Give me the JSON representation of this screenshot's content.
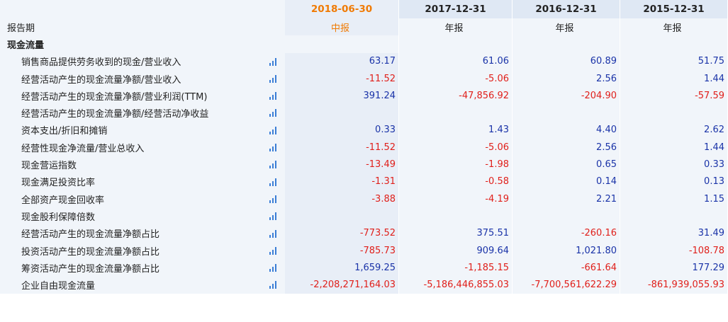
{
  "header": {
    "dates": [
      "2018-06-30",
      "2017-12-31",
      "2016-12-31",
      "2015-12-31"
    ]
  },
  "report_period": {
    "label": "报告期",
    "types": [
      "中报",
      "年报",
      "年报",
      "年报"
    ]
  },
  "section_title": "现金流量",
  "rows": [
    {
      "label": "销售商品提供劳务收到的现金/营业收入",
      "values": [
        "63.17",
        "61.06",
        "60.89",
        "51.75"
      ],
      "signs": [
        "pos",
        "pos",
        "pos",
        "pos"
      ]
    },
    {
      "label": "经营活动产生的现金流量净额/营业收入",
      "values": [
        "-11.52",
        "-5.06",
        "2.56",
        "1.44"
      ],
      "signs": [
        "neg",
        "neg",
        "pos",
        "pos"
      ]
    },
    {
      "label": "经营活动产生的现金流量净额/营业利润(TTM)",
      "values": [
        "391.24",
        "-47,856.92",
        "-204.90",
        "-57.59"
      ],
      "signs": [
        "pos",
        "neg",
        "neg",
        "neg"
      ]
    },
    {
      "label": "经营活动产生的现金流量净额/经营活动净收益",
      "values": [
        "",
        "",
        "",
        ""
      ],
      "signs": [
        "pos",
        "pos",
        "pos",
        "pos"
      ]
    },
    {
      "label": "资本支出/折旧和摊销",
      "values": [
        "0.33",
        "1.43",
        "4.40",
        "2.62"
      ],
      "signs": [
        "pos",
        "pos",
        "pos",
        "pos"
      ]
    },
    {
      "label": "经营性现金净流量/营业总收入",
      "values": [
        "-11.52",
        "-5.06",
        "2.56",
        "1.44"
      ],
      "signs": [
        "neg",
        "neg",
        "pos",
        "pos"
      ]
    },
    {
      "label": "现金营运指数",
      "values": [
        "-13.49",
        "-1.98",
        "0.65",
        "0.33"
      ],
      "signs": [
        "neg",
        "neg",
        "pos",
        "pos"
      ]
    },
    {
      "label": "现金满足投资比率",
      "values": [
        "-1.31",
        "-0.58",
        "0.14",
        "0.13"
      ],
      "signs": [
        "neg",
        "neg",
        "pos",
        "pos"
      ]
    },
    {
      "label": "全部资产现金回收率",
      "values": [
        "-3.88",
        "-4.19",
        "2.21",
        "1.15"
      ],
      "signs": [
        "neg",
        "neg",
        "pos",
        "pos"
      ]
    },
    {
      "label": "现金股利保障倍数",
      "values": [
        "",
        "",
        "",
        ""
      ],
      "signs": [
        "pos",
        "pos",
        "pos",
        "pos"
      ]
    },
    {
      "label": "经营活动产生的现金流量净额占比",
      "values": [
        "-773.52",
        "375.51",
        "-260.16",
        "31.49"
      ],
      "signs": [
        "neg",
        "pos",
        "neg",
        "pos"
      ]
    },
    {
      "label": "投资活动产生的现金流量净额占比",
      "values": [
        "-785.73",
        "909.64",
        "1,021.80",
        "-108.78"
      ],
      "signs": [
        "neg",
        "pos",
        "pos",
        "neg"
      ]
    },
    {
      "label": "筹资活动产生的现金流量净额占比",
      "values": [
        "1,659.25",
        "-1,185.15",
        "-661.64",
        "177.29"
      ],
      "signs": [
        "pos",
        "neg",
        "neg",
        "pos"
      ]
    },
    {
      "label": "企业自由现金流量",
      "values": [
        "-2,208,271,164.03",
        "-5,186,446,855.03",
        "-7,700,561,622.29",
        "-861,939,055.93"
      ],
      "signs": [
        "neg",
        "neg",
        "neg",
        "neg"
      ]
    }
  ],
  "colors": {
    "positive": "#1a33a8",
    "negative": "#e0201b",
    "highlight_date": "#f07b05",
    "header_bg": "#dfe8f4",
    "row_bg": "#f1f5fa",
    "chart_icon": "#3b7ed6"
  },
  "icon": "bar-chart-icon"
}
